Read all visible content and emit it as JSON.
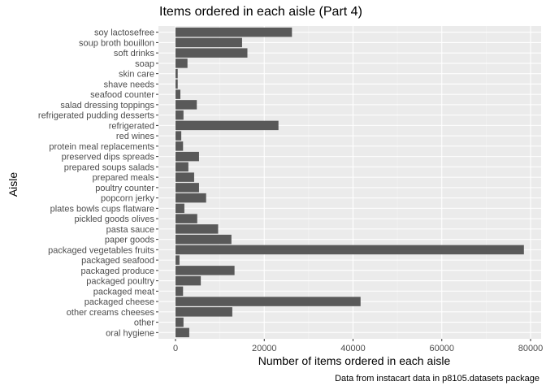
{
  "chart_data": {
    "type": "bar",
    "orientation": "horizontal",
    "title": "Items ordered in each aisle (Part 4)",
    "xlabel": "Number of items ordered in each aisle",
    "ylabel": "Aisle",
    "caption": "Data from instacart data in p8105.datasets package",
    "xlim": [
      0,
      80000
    ],
    "xticks": [
      0,
      20000,
      40000,
      60000,
      80000
    ],
    "xtick_labels": [
      "0",
      "20000",
      "40000",
      "60000",
      "80000"
    ],
    "grid": true,
    "categories": [
      "soy lactosefree",
      "soup broth bouillon",
      "soft drinks",
      "soap",
      "skin care",
      "shave needs",
      "seafood counter",
      "salad dressing toppings",
      "refrigerated pudding desserts",
      "refrigerated",
      "red wines",
      "protein meal replacements",
      "preserved dips spreads",
      "prepared soups salads",
      "prepared meals",
      "poultry counter",
      "popcorn jerky",
      "plates bowls cups flatware",
      "pickled goods olives",
      "pasta sauce",
      "paper goods",
      "packaged vegetables fruits",
      "packaged seafood",
      "packaged produce",
      "packaged poultry",
      "packaged meat",
      "packaged cheese",
      "other creams cheeses",
      "other",
      "oral hygiene"
    ],
    "values": [
      26240,
      15000,
      16200,
      2700,
      500,
      500,
      1100,
      4800,
      1800,
      23200,
      1300,
      1700,
      5300,
      2900,
      4200,
      5300,
      6900,
      2000,
      4900,
      9600,
      12600,
      78500,
      900,
      13300,
      5700,
      1700,
      41700,
      12800,
      1800,
      3100
    ],
    "colors": {
      "bar": "#595959",
      "panel": "#ebebeb",
      "grid_major": "#ffffff",
      "grid_minor": "#f5f5f5",
      "tick_label": "#4d4d4d",
      "tick_mark": "#333333"
    }
  }
}
